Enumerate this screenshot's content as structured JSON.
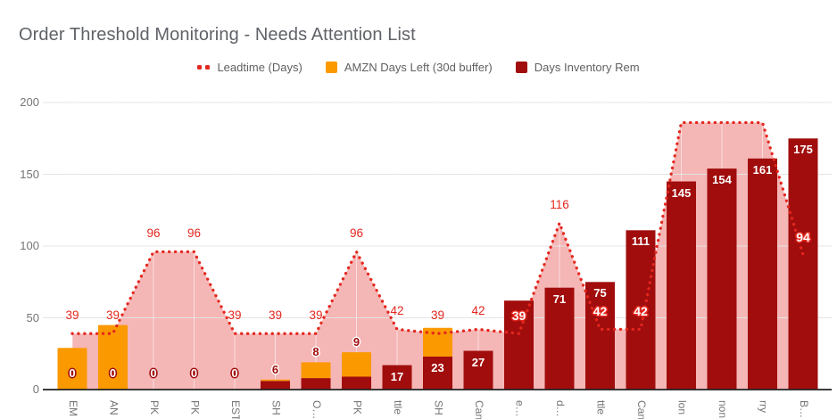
{
  "title": "Order Threshold Monitoring - Needs Attention List",
  "legend": [
    {
      "label": "Leadtime (Days)",
      "type": "dotted-line",
      "color": "#E3271E"
    },
    {
      "label": "AMZN Days Left (30d buffer)",
      "type": "square",
      "color": "#FB9900"
    },
    {
      "label": "Days Inventory Rem",
      "type": "square",
      "color": "#A10D0D"
    }
  ],
  "y_axis": {
    "ticks": [
      0,
      50,
      100,
      150,
      200
    ],
    "max": 200
  },
  "chart_data": {
    "type": "combo",
    "categories": [
      "EM",
      "AN",
      "PK",
      "PK",
      "EST",
      "SH",
      "O…",
      "PK",
      "ttle",
      "SH",
      "Can",
      "e…",
      "d…",
      "ttle",
      "Can",
      "lon",
      "non",
      "rry",
      "B…"
    ],
    "series": [
      {
        "name": "Days Inventory Rem",
        "type": "bar",
        "color": "#A10D0D",
        "values": [
          0,
          0,
          0,
          0,
          0,
          6,
          8,
          9,
          17,
          23,
          27,
          62,
          71,
          75,
          111,
          145,
          154,
          161,
          175
        ],
        "labels": [
          "0",
          "0",
          "0",
          "0",
          "0",
          "6",
          "8",
          "9",
          "17",
          "23",
          "27",
          "",
          "71",
          "75",
          "111",
          "145",
          "154",
          "161",
          "175"
        ]
      },
      {
        "name": "AMZN Days Left (30d buffer)",
        "type": "bar-stacked",
        "color": "#FB9900",
        "values": [
          29,
          45,
          0,
          0,
          0,
          1,
          11,
          17,
          0,
          20,
          0,
          0,
          0,
          0,
          0,
          0,
          0,
          0,
          0
        ]
      },
      {
        "name": "Leadtime (Days)",
        "type": "line-dotted",
        "color": "#E3271E",
        "area_fill": "#F5B6B6",
        "values": [
          39,
          39,
          96,
          96,
          39,
          39,
          39,
          96,
          42,
          39,
          42,
          39,
          116,
          42,
          42,
          186,
          186,
          186,
          94
        ],
        "labels": [
          "39",
          "39",
          "96",
          "96",
          "39",
          "39",
          "39",
          "96",
          "42",
          "39",
          "42",
          "39",
          "116",
          "42",
          "42",
          "",
          "",
          "",
          "94"
        ],
        "label_styles": [
          "plain",
          "plain",
          "plain",
          "plain",
          "plain",
          "plain",
          "plain",
          "plain",
          "plain",
          "plain",
          "plain",
          "outline",
          "plain",
          "outline",
          "outline",
          "none",
          "none",
          "none",
          "outline"
        ]
      }
    ]
  }
}
